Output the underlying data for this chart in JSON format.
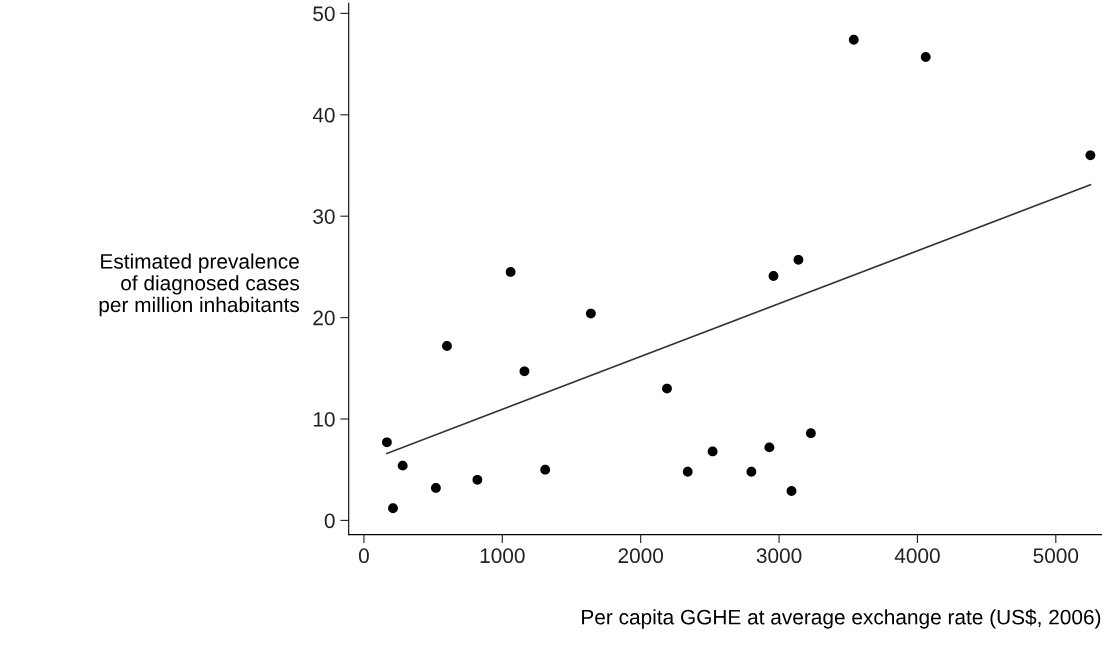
{
  "chart_data": {
    "type": "scatter",
    "xlabel": "Per capita GGHE at average exchange rate (US$, 2006)",
    "ylabel": "Estimated prevalence\nof diagnosed cases\nper million inhabitants",
    "xlim": [
      -110,
      5330
    ],
    "ylim": [
      -1.4,
      51
    ],
    "xticks": [
      0,
      1000,
      2000,
      3000,
      4000,
      5000
    ],
    "yticks": [
      0,
      10,
      20,
      30,
      40,
      50
    ],
    "grid": false,
    "legend": false,
    "series": [
      {
        "marker": "circle",
        "color": "#000000",
        "x": [
          166,
          210,
          280,
          520,
          820,
          600,
          1060,
          1160,
          1310,
          1640,
          2190,
          2340,
          2520,
          2800,
          2930,
          2960,
          3090,
          3140,
          3230,
          3540,
          4060,
          5250
        ],
        "values": [
          7.7,
          1.2,
          5.4,
          3.2,
          4.0,
          17.2,
          24.5,
          14.7,
          5.0,
          20.4,
          13.0,
          4.8,
          6.8,
          4.8,
          7.2,
          24.1,
          2.9,
          25.7,
          8.6,
          47.4,
          45.7,
          36.0
        ]
      },
      {
        "type": "line",
        "color": "#333333",
        "x": [
          166,
          5250
        ],
        "values": [
          6.6,
          33.1
        ]
      }
    ]
  }
}
